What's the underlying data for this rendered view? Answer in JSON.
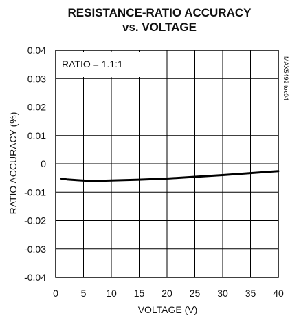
{
  "chart_data": {
    "type": "line",
    "title_lines": [
      "RESISTANCE-RATIO ACCURACY",
      "vs. VOLTAGE"
    ],
    "xlabel": "VOLTAGE (V)",
    "ylabel": "RATIO ACCURACY (%)",
    "xlim": [
      0,
      40
    ],
    "ylim": [
      -0.04,
      0.04
    ],
    "x_ticks": [
      0,
      5,
      10,
      15,
      20,
      25,
      30,
      35,
      40
    ],
    "y_ticks": [
      0.04,
      0.03,
      0.02,
      0.01,
      0,
      -0.01,
      -0.02,
      -0.03,
      -0.04
    ],
    "x_tick_labels": [
      "0",
      "5",
      "10",
      "15",
      "20",
      "25",
      "30",
      "35",
      "40"
    ],
    "y_tick_labels": [
      "0.04",
      "0.03",
      "0.02",
      "0.01",
      "0",
      "-0.01",
      "-0.02",
      "-0.03",
      "-0.04"
    ],
    "grid": true,
    "annotation": "RATIO = 1.1:1",
    "side_code": "MAX5492 toc04",
    "series": [
      {
        "x": [
          1,
          2,
          4,
          6,
          8,
          10,
          15,
          20,
          25,
          30,
          35,
          40
        ],
        "y": [
          -0.0052,
          -0.0055,
          -0.0058,
          -0.006,
          -0.006,
          -0.0059,
          -0.0056,
          -0.0052,
          -0.0046,
          -0.004,
          -0.0033,
          -0.0026
        ],
        "color": "#000000"
      }
    ]
  }
}
